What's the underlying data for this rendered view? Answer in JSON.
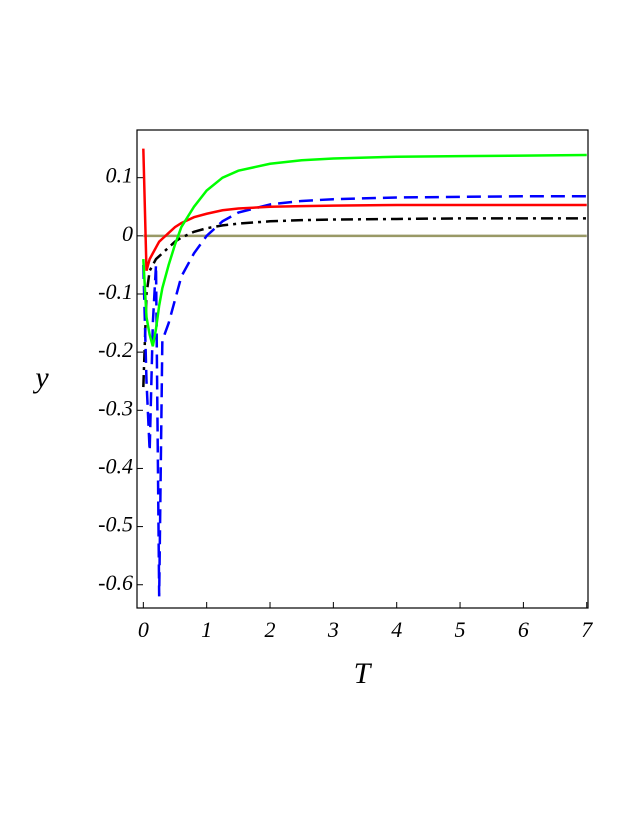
{
  "chart_data": {
    "type": "line",
    "x_label": "T",
    "y_label": "y",
    "x": [
      0,
      0.05,
      0.1,
      0.15,
      0.2,
      0.25,
      0.3,
      0.4,
      0.5,
      0.6,
      0.8,
      1,
      1.25,
      1.5,
      2,
      2.5,
      3,
      4,
      5,
      6,
      7
    ],
    "series": [
      {
        "color": "#999966",
        "dash": "solid",
        "values": [
          0,
          0,
          0,
          0,
          0,
          0,
          0,
          0,
          0,
          0,
          0,
          0,
          0,
          0,
          0,
          0,
          0,
          0,
          0,
          0,
          0
        ]
      },
      {
        "color": "#000000",
        "dash": "dashdot",
        "values": [
          -0.26,
          -0.1,
          -0.06,
          -0.05,
          -0.04,
          -0.035,
          -0.03,
          -0.02,
          -0.01,
          -0.003,
          0.007,
          0.013,
          0.018,
          0.021,
          0.025,
          0.027,
          0.028,
          0.029,
          0.03,
          0.03,
          0.03
        ]
      },
      {
        "color": "#0000ff",
        "dash": "dashed",
        "values": [
          -0.05,
          -0.25,
          -0.37,
          -0.15,
          -0.05,
          -0.62,
          -0.18,
          -0.15,
          -0.11,
          -0.07,
          -0.03,
          0.0,
          0.025,
          0.04,
          0.054,
          0.06,
          0.063,
          0.066,
          0.067,
          0.068,
          0.068
        ]
      },
      {
        "color": "#ff0000",
        "dash": "solid",
        "values": [
          0.15,
          -0.06,
          -0.04,
          -0.03,
          -0.02,
          -0.01,
          -0.005,
          0.005,
          0.015,
          0.022,
          0.032,
          0.038,
          0.044,
          0.047,
          0.05,
          0.051,
          0.052,
          0.053,
          0.053,
          0.053,
          0.053
        ]
      },
      {
        "color": "#00ff00",
        "dash": "solid",
        "values": [
          -0.04,
          -0.14,
          -0.17,
          -0.19,
          -0.16,
          -0.12,
          -0.09,
          -0.05,
          -0.015,
          0.015,
          0.05,
          0.078,
          0.1,
          0.112,
          0.124,
          0.13,
          0.133,
          0.136,
          0.137,
          0.138,
          0.139
        ]
      }
    ],
    "xlim": [
      -0.1,
      7.02
    ],
    "ylim": [
      -0.64,
      0.182
    ],
    "xticks": [
      0,
      1,
      2,
      3,
      4,
      5,
      6,
      7
    ],
    "yticks": [
      0.1,
      0,
      -0.1,
      -0.2,
      -0.3,
      -0.4,
      -0.5,
      -0.6
    ]
  }
}
